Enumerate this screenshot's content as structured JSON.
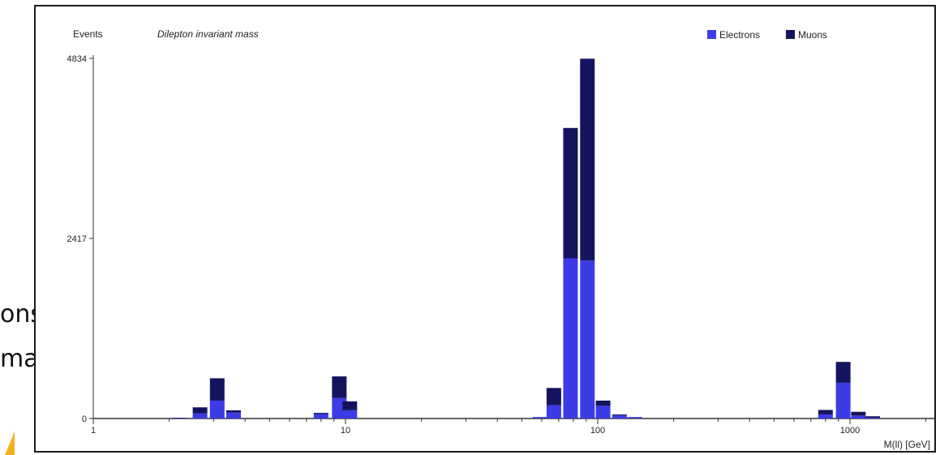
{
  "slide": {
    "line1": "ons",
    "line2": "mass"
  },
  "chart_data": {
    "type": "bar",
    "stacked": true,
    "title": "Dilepton invariant mass",
    "ylabel": "Events",
    "xlabel": "M(ll) [GeV]",
    "xscale": "log",
    "xlim": [
      1,
      2200
    ],
    "ylim": [
      0,
      4834
    ],
    "yticks": [
      0,
      2417,
      4834
    ],
    "xticks": [
      1,
      10,
      100,
      1000
    ],
    "legend_position": "top-right",
    "grid": false,
    "series": [
      {
        "name": "Electrons",
        "color": "#3c3ce6"
      },
      {
        "name": "Muons",
        "color": "#14145e"
      }
    ],
    "bins": [
      {
        "x": 2.2,
        "electrons": 5,
        "muons": 5
      },
      {
        "x": 2.65,
        "electrons": 70,
        "muons": 80
      },
      {
        "x": 3.1,
        "electrons": 240,
        "muons": 300
      },
      {
        "x": 3.6,
        "electrons": 80,
        "muons": 30
      },
      {
        "x": 8.0,
        "electrons": 60,
        "muons": 15
      },
      {
        "x": 9.45,
        "electrons": 275,
        "muons": 290
      },
      {
        "x": 10.4,
        "electrons": 110,
        "muons": 120
      },
      {
        "x": 59,
        "electrons": 15,
        "muons": 5
      },
      {
        "x": 67,
        "electrons": 180,
        "muons": 230
      },
      {
        "x": 78,
        "electrons": 2150,
        "muons": 1750
      },
      {
        "x": 91,
        "electrons": 2120,
        "muons": 2710
      },
      {
        "x": 105,
        "electrons": 170,
        "muons": 70
      },
      {
        "x": 122,
        "electrons": 45,
        "muons": 10
      },
      {
        "x": 140,
        "electrons": 15,
        "muons": 5
      },
      {
        "x": 800,
        "electrons": 55,
        "muons": 60
      },
      {
        "x": 940,
        "electrons": 480,
        "muons": 280
      },
      {
        "x": 1080,
        "electrons": 40,
        "muons": 50
      },
      {
        "x": 1230,
        "electrons": 10,
        "muons": 20
      }
    ]
  }
}
